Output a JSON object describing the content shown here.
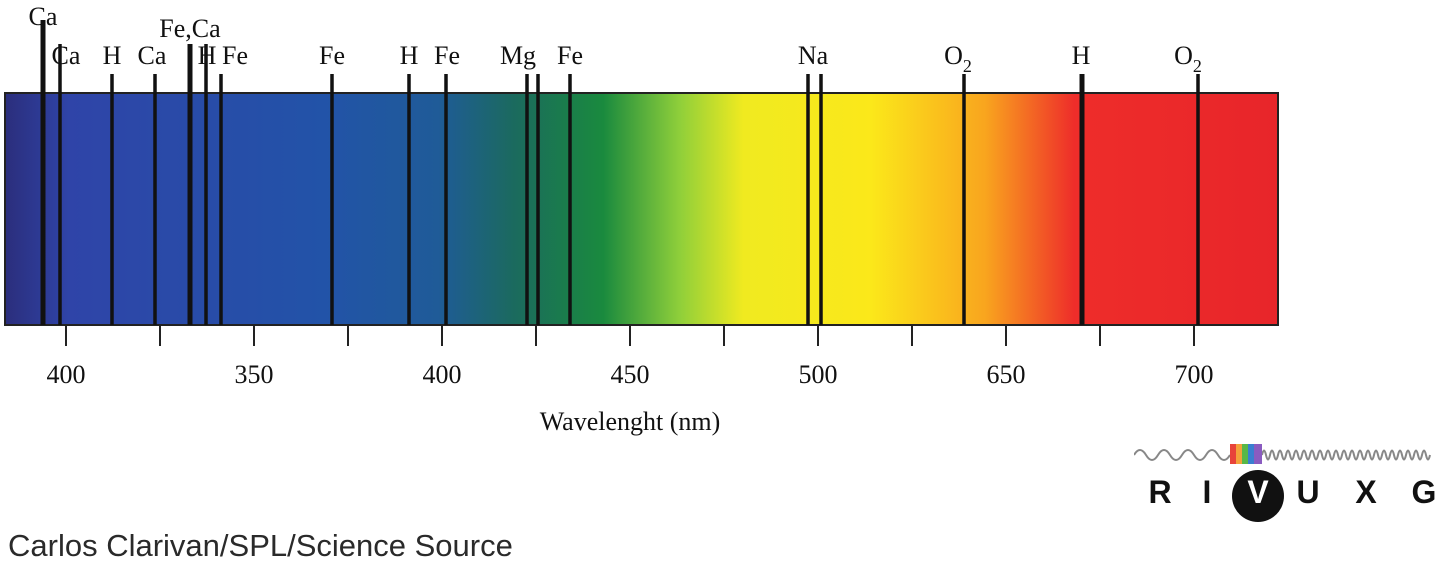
{
  "diagram": {
    "axis_label": "Wavelenght (nm)",
    "tick_labels": [
      "400",
      "350",
      "400",
      "450",
      "500",
      "650",
      "700"
    ],
    "absorption_lines": [
      {
        "label": "Ca",
        "sub": ""
      },
      {
        "label": "Ca",
        "sub": ""
      },
      {
        "label": "H",
        "sub": ""
      },
      {
        "label": "Ca",
        "sub": ""
      },
      {
        "label": "Fe,Ca",
        "sub": ""
      },
      {
        "label": "H",
        "sub": ""
      },
      {
        "label": "Fe",
        "sub": ""
      },
      {
        "label": "Fe",
        "sub": ""
      },
      {
        "label": "H",
        "sub": ""
      },
      {
        "label": "Fe",
        "sub": ""
      },
      {
        "label": "Mg",
        "sub": ""
      },
      {
        "label": "Fe",
        "sub": ""
      },
      {
        "label": "Na",
        "sub": ""
      },
      {
        "label": "O",
        "sub": "2"
      },
      {
        "label": "H",
        "sub": ""
      },
      {
        "label": "O",
        "sub": "2"
      }
    ]
  },
  "wavebands": {
    "letters": [
      "R",
      "I",
      "V",
      "U",
      "X",
      "G"
    ],
    "selected": "V",
    "highlight_colors": [
      "#e8433a",
      "#f4a23a",
      "#58b847",
      "#3a7fd0",
      "#8a5bc0"
    ]
  },
  "credit": "Carlos Clarivan/SPL/Science Source",
  "colors": {
    "spectrum_stops": [
      "#2b2e7c",
      "#2f44a8",
      "#2253a8",
      "#1f5b98",
      "#1b6a5e",
      "#1a8a3e",
      "#8fcf3a",
      "#f0ea20",
      "#fbe81a",
      "#f9a51e",
      "#ee2d2a",
      "#e8252a"
    ]
  }
}
